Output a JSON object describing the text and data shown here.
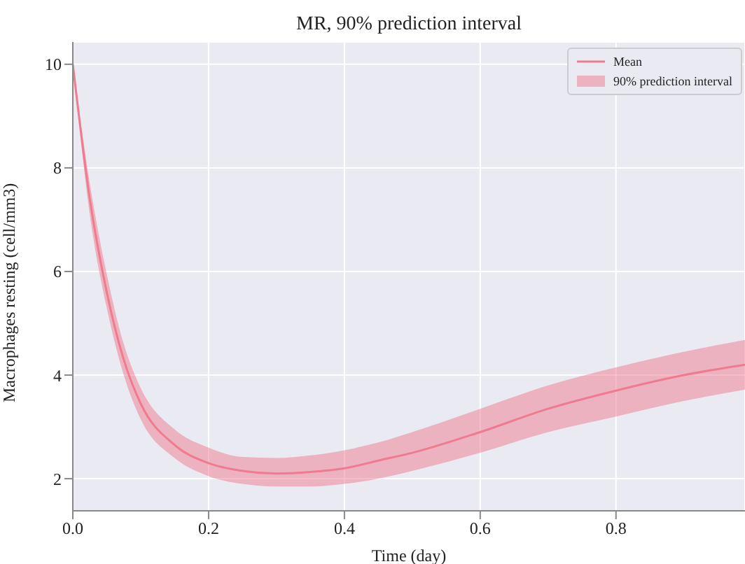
{
  "chart_data": {
    "type": "line",
    "title": "MR, 90% prediction interval",
    "xlabel": "Time (day)",
    "ylabel": "Macrophages resting (cell/mm3)",
    "x": [
      0,
      0.025,
      0.05,
      0.075,
      0.1,
      0.15,
      0.2,
      0.25,
      0.3,
      0.35,
      0.4,
      0.45,
      0.5,
      0.6,
      0.7,
      0.8,
      0.9,
      0.99
    ],
    "series": [
      {
        "name": "Mean",
        "color": "#f07a8e",
        "values": [
          10,
          7.4,
          5.6,
          4.3,
          3.45,
          2.65,
          2.3,
          2.15,
          2.1,
          2.13,
          2.2,
          2.35,
          2.5,
          2.9,
          3.35,
          3.7,
          4.0,
          4.2
        ],
        "lower": [
          10,
          7.1,
          5.3,
          4.0,
          3.15,
          2.4,
          2.05,
          1.9,
          1.85,
          1.85,
          1.9,
          2.0,
          2.15,
          2.5,
          2.9,
          3.2,
          3.5,
          3.72
        ],
        "upper": [
          10,
          7.7,
          5.95,
          4.6,
          3.75,
          2.95,
          2.6,
          2.42,
          2.4,
          2.45,
          2.55,
          2.7,
          2.9,
          3.35,
          3.8,
          4.15,
          4.45,
          4.68
        ]
      }
    ],
    "annotations": [
      "90% prediction interval"
    ],
    "xlim": [
      0,
      0.99
    ],
    "xticks": [
      {
        "value": 0,
        "label": "0.0"
      },
      {
        "value": 0.2,
        "label": "0.2"
      },
      {
        "value": 0.4,
        "label": "0.4"
      },
      {
        "value": 0.6,
        "label": "0.6"
      },
      {
        "value": 0.8,
        "label": "0.8"
      }
    ],
    "ylim": [
      1.38,
      10.43
    ],
    "yticks": [
      2,
      4,
      6,
      8,
      10
    ],
    "grid": true,
    "legend": "top right"
  }
}
